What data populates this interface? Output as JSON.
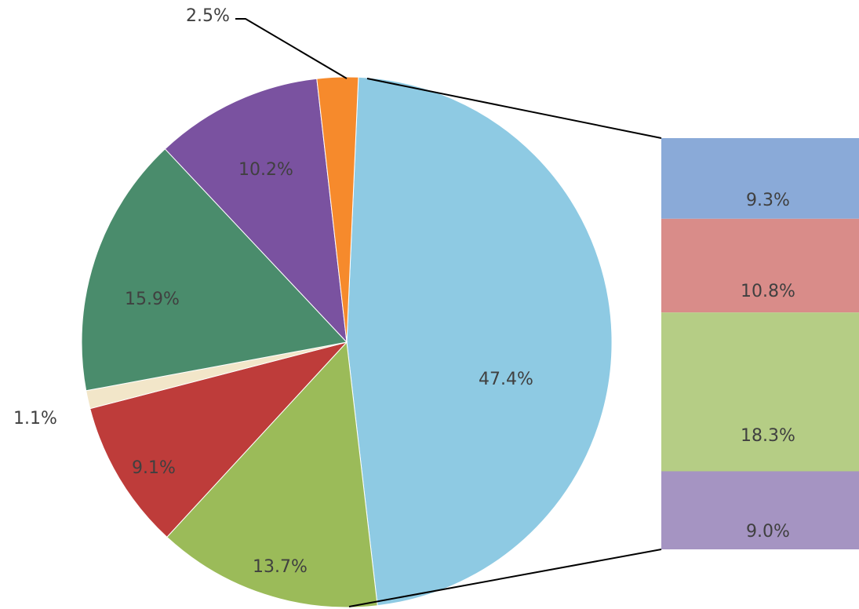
{
  "chart_data": {
    "type": "pie",
    "subtype": "bar-of-pie",
    "title": "",
    "slices": [
      {
        "value": 47.4,
        "label": "47.4%",
        "color": "#8ecae3"
      },
      {
        "value": 13.7,
        "label": "13.7%",
        "color": "#9bbb59"
      },
      {
        "value": 9.1,
        "label": "9.1%",
        "color": "#be3c3a"
      },
      {
        "value": 1.1,
        "label": "1.1%",
        "color": "#f2e6c9"
      },
      {
        "value": 15.9,
        "label": "15.9%",
        "color": "#4a8c6c"
      },
      {
        "value": 10.2,
        "label": "10.2%",
        "color": "#7a52a0"
      },
      {
        "value": 2.5,
        "label": "2.5%",
        "color": "#f68a2c"
      }
    ],
    "secondary_bar": {
      "segments": [
        {
          "value": 9.3,
          "label": "9.3%",
          "color": "#8aaad8"
        },
        {
          "value": 10.8,
          "label": "10.8%",
          "color": "#d98c89"
        },
        {
          "value": 18.3,
          "label": "18.3%",
          "color": "#b5cd85"
        },
        {
          "value": 9.0,
          "label": "9.0%",
          "color": "#a594c2"
        }
      ]
    },
    "legend": "none"
  }
}
